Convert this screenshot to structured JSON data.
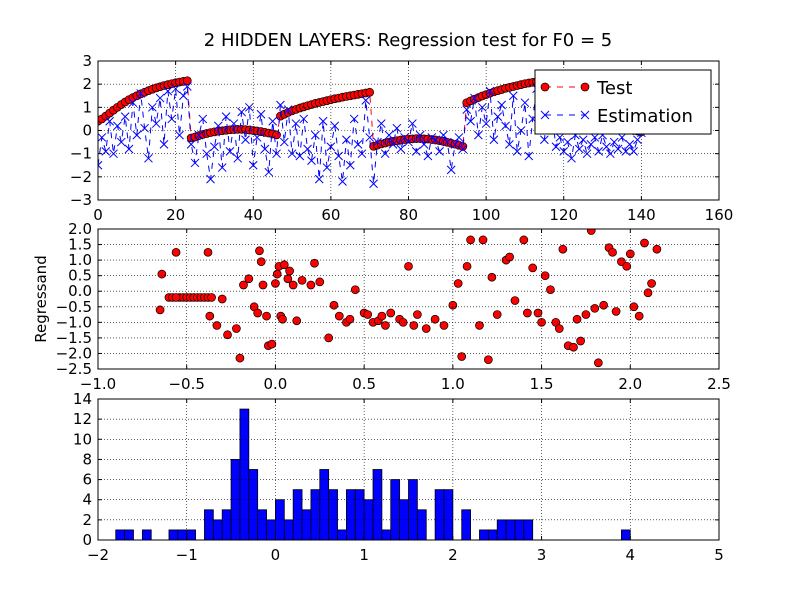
{
  "chart_data": [
    {
      "type": "line",
      "title": "2 HIDDEN LAYERS: Regression test for F0 = 5",
      "x": [
        0,
        1,
        2,
        3,
        4,
        5,
        6,
        7,
        8,
        9,
        10,
        11,
        12,
        13,
        14,
        15,
        16,
        17,
        18,
        19,
        20,
        21,
        22,
        23,
        24,
        25,
        26,
        27,
        28,
        29,
        30,
        31,
        32,
        33,
        34,
        35,
        36,
        37,
        38,
        39,
        40,
        41,
        42,
        43,
        44,
        45,
        46,
        47,
        48,
        49,
        50,
        51,
        52,
        53,
        54,
        55,
        56,
        57,
        58,
        59,
        60,
        61,
        62,
        63,
        64,
        65,
        66,
        67,
        68,
        69,
        70,
        71,
        72,
        73,
        74,
        75,
        76,
        77,
        78,
        79,
        80,
        81,
        82,
        83,
        84,
        85,
        86,
        87,
        88,
        89,
        90,
        91,
        92,
        93,
        94,
        95,
        96,
        97,
        98,
        99,
        100,
        101,
        102,
        103,
        104,
        105,
        106,
        107,
        108,
        109,
        110,
        111,
        112,
        113,
        114,
        115,
        116,
        117,
        118,
        119,
        120,
        121,
        122,
        123,
        124,
        125,
        126,
        127,
        128,
        129,
        130,
        131,
        132,
        133,
        134,
        135,
        136,
        137,
        138,
        139,
        140
      ],
      "series": [
        {
          "name": "Test",
          "color": "#ff0000",
          "marker": "o",
          "line_style": "dashed",
          "values": [
            0.4,
            0.5,
            0.62,
            0.75,
            0.88,
            1.0,
            1.12,
            1.23,
            1.33,
            1.42,
            1.5,
            1.58,
            1.65,
            1.72,
            1.78,
            1.84,
            1.89,
            1.94,
            1.98,
            2.02,
            2.06,
            2.09,
            2.12,
            2.15,
            -0.32,
            -0.28,
            -0.22,
            -0.17,
            -0.13,
            -0.09,
            -0.06,
            -0.03,
            -0.01,
            0.01,
            0.03,
            0.04,
            0.05,
            0.05,
            0.04,
            0.02,
            0.0,
            -0.02,
            -0.05,
            -0.08,
            -0.11,
            -0.15,
            -0.19,
            0.62,
            0.7,
            0.78,
            0.85,
            0.91,
            0.97,
            1.02,
            1.07,
            1.12,
            1.17,
            1.21,
            1.25,
            1.29,
            1.33,
            1.37,
            1.4,
            1.44,
            1.47,
            1.5,
            1.53,
            1.56,
            1.59,
            1.62,
            1.65,
            -0.68,
            -0.63,
            -0.58,
            -0.54,
            -0.5,
            -0.47,
            -0.44,
            -0.41,
            -0.39,
            -0.37,
            -0.36,
            -0.35,
            -0.35,
            -0.36,
            -0.37,
            -0.39,
            -0.41,
            -0.44,
            -0.47,
            -0.51,
            -0.55,
            -0.59,
            -0.64,
            -0.69,
            1.2,
            1.28,
            1.35,
            1.42,
            1.49,
            1.55,
            1.61,
            1.67,
            1.72,
            1.77,
            1.82,
            1.86,
            1.9,
            1.94,
            1.98,
            2.02,
            2.05,
            2.08,
            2.11,
            2.14,
            2.16,
            2.18,
            2.2,
            2.2,
            0.1,
            0.14,
            0.17,
            0.2,
            0.22,
            0.24,
            0.25,
            0.26,
            0.26,
            0.25,
            0.24,
            0.22,
            0.2,
            0.17,
            0.14,
            0.11,
            0.08,
            0.05,
            0.02,
            0.0,
            -0.02,
            -0.05
          ]
        },
        {
          "name": "Estimation",
          "color": "#0000ff",
          "marker": "x",
          "line_style": "dashed",
          "values": [
            -1.5,
            -0.3,
            -0.9,
            0.4,
            -1.0,
            0.2,
            -0.5,
            0.6,
            -0.8,
            1.2,
            -0.2,
            1.6,
            0.1,
            -1.2,
            1.0,
            0.3,
            1.4,
            -0.6,
            1.7,
            0.5,
            1.8,
            -0.2,
            1.5,
            1.9,
            -0.6,
            -1.4,
            -0.2,
            0.5,
            -1.0,
            -2.1,
            -0.7,
            0.2,
            -1.6,
            0.6,
            -0.9,
            0.3,
            -1.2,
            0.8,
            -0.4,
            1.0,
            -1.5,
            -0.3,
            0.7,
            -0.8,
            -1.8,
            0.4,
            -1.0,
            1.1,
            -0.5,
            0.9,
            -1.0,
            0.3,
            -1.1,
            0.5,
            -0.8,
            -1.3,
            -0.2,
            -2.1,
            0.4,
            -1.6,
            -0.7,
            0.2,
            -1.1,
            -2.2,
            -0.4,
            -1.5,
            0.5,
            -0.6,
            -1.0,
            1.3,
            -0.3,
            -2.3,
            -0.5,
            0.3,
            -1.0,
            -0.2,
            -0.6,
            0.1,
            -0.8,
            -0.3,
            -0.5,
            0.3,
            -0.9,
            -0.2,
            -0.6,
            -1.1,
            -0.3,
            -0.4,
            -0.9,
            -0.2,
            -0.5,
            -1.7,
            -0.6,
            -0.3,
            -0.8,
            0.9,
            0.4,
            1.4,
            -0.2,
            1.0,
            0.3,
            1.7,
            -0.4,
            0.6,
            1.1,
            0.2,
            -0.6,
            1.5,
            -0.9,
            0.0,
            1.2,
            -1.1,
            0.5,
            1.8,
            0.3,
            -0.4,
            1.0,
            0.6,
            -0.7,
            -0.3,
            -0.9,
            -0.5,
            -1.2,
            -0.2,
            -0.8,
            -0.4,
            -1.0,
            -0.6,
            -0.3,
            -0.9,
            -0.2,
            -0.7,
            -1.0,
            -0.5,
            -0.8,
            -0.3,
            -0.9,
            -0.6,
            -0.9,
            -0.4,
            -0.1
          ]
        }
      ],
      "xlim": [
        0,
        160
      ],
      "ylim": [
        -3,
        3
      ],
      "xticks": [
        0,
        20,
        40,
        60,
        80,
        100,
        120,
        140,
        160
      ],
      "yticks": [
        {
          "value": -3,
          "label": "−3"
        },
        {
          "value": -2,
          "label": "−2"
        },
        {
          "value": -1,
          "label": "−1"
        },
        0,
        1,
        2,
        3
      ],
      "grid": true,
      "legend": "upper right"
    },
    {
      "type": "scatter",
      "ylabel": "Regressand",
      "color": "#ff0000",
      "x": [
        -0.65,
        -0.64,
        -0.6,
        -0.58,
        -0.56,
        -0.54,
        -0.52,
        -0.5,
        -0.48,
        -0.46,
        -0.44,
        -0.42,
        -0.4,
        -0.38,
        -0.36,
        -0.56,
        -0.38,
        -0.37,
        -0.33,
        -0.3,
        -0.27,
        -0.22,
        -0.2,
        -0.18,
        -0.15,
        -0.12,
        -0.1,
        -0.09,
        -0.08,
        -0.07,
        -0.05,
        -0.04,
        -0.02,
        0.0,
        0.01,
        0.02,
        0.03,
        0.04,
        0.05,
        0.07,
        0.08,
        0.1,
        0.12,
        0.15,
        0.2,
        0.22,
        0.25,
        0.3,
        0.33,
        0.36,
        0.4,
        0.42,
        0.45,
        0.5,
        0.52,
        0.55,
        0.58,
        0.6,
        0.62,
        0.65,
        0.7,
        0.72,
        0.75,
        0.78,
        0.8,
        0.85,
        0.9,
        0.95,
        1.0,
        1.03,
        1.05,
        1.08,
        1.1,
        1.15,
        1.17,
        1.2,
        1.22,
        1.25,
        1.3,
        1.32,
        1.35,
        1.4,
        1.42,
        1.45,
        1.48,
        1.5,
        1.52,
        1.55,
        1.58,
        1.6,
        1.62,
        1.65,
        1.68,
        1.7,
        1.72,
        1.75,
        1.78,
        1.8,
        1.82,
        1.85,
        1.88,
        1.9,
        1.92,
        1.95,
        1.98,
        2.0,
        2.02,
        2.05,
        2.08,
        2.1,
        2.12,
        2.15
      ],
      "values": [
        -0.6,
        0.55,
        -0.2,
        -0.2,
        1.25,
        -0.2,
        -0.2,
        -0.2,
        -0.2,
        -0.2,
        -0.2,
        -0.2,
        -0.2,
        -0.2,
        -0.2,
        -0.2,
        1.25,
        -0.8,
        -1.1,
        -0.25,
        -1.4,
        -1.2,
        -2.15,
        0.2,
        0.4,
        -0.5,
        -0.7,
        1.3,
        0.95,
        0.2,
        -0.8,
        -1.75,
        -1.7,
        0.25,
        0.55,
        0.8,
        -0.8,
        -0.9,
        0.85,
        0.4,
        0.65,
        0.2,
        -0.95,
        0.35,
        0.2,
        0.9,
        0.3,
        -1.5,
        -0.45,
        -0.8,
        -1.0,
        -0.9,
        0.05,
        -0.7,
        -0.75,
        -1.0,
        -0.95,
        -0.8,
        -1.1,
        -0.7,
        -0.9,
        -1.0,
        0.8,
        -1.1,
        -0.75,
        -1.2,
        -0.9,
        -1.1,
        -0.45,
        0.25,
        -2.1,
        0.8,
        1.65,
        -1.1,
        1.65,
        -2.2,
        0.45,
        -0.75,
        1.0,
        1.1,
        -0.3,
        1.65,
        -0.7,
        0.75,
        -0.7,
        -1.0,
        0.5,
        0.05,
        -1.0,
        -1.2,
        1.35,
        -1.75,
        -1.8,
        -0.9,
        -1.6,
        -0.75,
        1.95,
        -0.55,
        -2.3,
        -0.45,
        1.4,
        1.25,
        -0.65,
        0.95,
        0.8,
        1.2,
        -0.5,
        -0.8,
        1.55,
        -0.05,
        0.25,
        1.35
      ],
      "xlim": [
        -1.0,
        2.5
      ],
      "ylim": [
        -2.5,
        2.0
      ],
      "xticks": [
        {
          "value": -1.0,
          "label": "−1.0"
        },
        {
          "value": -0.5,
          "label": "−0.5"
        },
        {
          "value": 0.0,
          "label": "0.0"
        },
        {
          "value": 0.5,
          "label": "0.5"
        },
        {
          "value": 1.0,
          "label": "1.0"
        },
        {
          "value": 1.5,
          "label": "1.5"
        },
        {
          "value": 2.0,
          "label": "2.0"
        },
        {
          "value": 2.5,
          "label": "2.5"
        }
      ],
      "yticks": [
        {
          "value": -2.5,
          "label": "−2.5"
        },
        {
          "value": -2.0,
          "label": "−2.0"
        },
        {
          "value": -1.5,
          "label": "−1.5"
        },
        {
          "value": -1.0,
          "label": "−1.0"
        },
        {
          "value": -0.5,
          "label": "−0.5"
        },
        {
          "value": 0.0,
          "label": "0.0"
        },
        {
          "value": 0.5,
          "label": "0.5"
        },
        {
          "value": 1.0,
          "label": "1.0"
        },
        {
          "value": 1.5,
          "label": "1.5"
        },
        {
          "value": 2.0,
          "label": "2.0"
        }
      ],
      "grid": true
    },
    {
      "type": "histogram",
      "color": "#0000ff",
      "bins": [
        -1.8,
        -1.7,
        -1.6,
        -1.5,
        -1.4,
        -1.3,
        -1.2,
        -1.1,
        -1.0,
        -0.9,
        -0.8,
        -0.7,
        -0.6,
        -0.5,
        -0.4,
        -0.3,
        -0.2,
        -0.1,
        0.0,
        0.1,
        0.2,
        0.3,
        0.4,
        0.5,
        0.6,
        0.7,
        0.8,
        0.9,
        1.0,
        1.1,
        1.2,
        1.3,
        1.4,
        1.5,
        1.6,
        1.7,
        1.8,
        1.9,
        2.0,
        2.1,
        2.2,
        2.3,
        2.4,
        2.5,
        2.6,
        2.7,
        2.8,
        2.9,
        3.0,
        3.1,
        3.2,
        3.3,
        3.4,
        3.5,
        3.6,
        3.7,
        3.8,
        3.9,
        4.0
      ],
      "values": [
        1,
        1,
        0,
        1,
        0,
        0,
        1,
        1,
        1,
        0,
        3,
        2,
        3,
        8,
        13,
        7,
        3,
        2,
        4,
        2,
        5,
        3,
        5,
        7,
        5,
        1,
        5,
        5,
        4,
        7,
        1,
        6,
        4,
        6,
        3,
        0,
        5,
        5,
        0,
        3,
        0,
        1,
        1,
        2,
        2,
        2,
        2,
        0,
        0,
        0,
        0,
        0,
        0,
        0,
        0,
        0,
        0,
        1
      ],
      "xlim": [
        -2,
        5
      ],
      "ylim": [
        0,
        14
      ],
      "xticks": [
        {
          "value": -2,
          "label": "−2"
        },
        {
          "value": -1,
          "label": "−1"
        },
        0,
        1,
        2,
        3,
        4,
        5
      ],
      "yticks": [
        0,
        2,
        4,
        6,
        8,
        10,
        12,
        14
      ],
      "grid": true
    }
  ]
}
